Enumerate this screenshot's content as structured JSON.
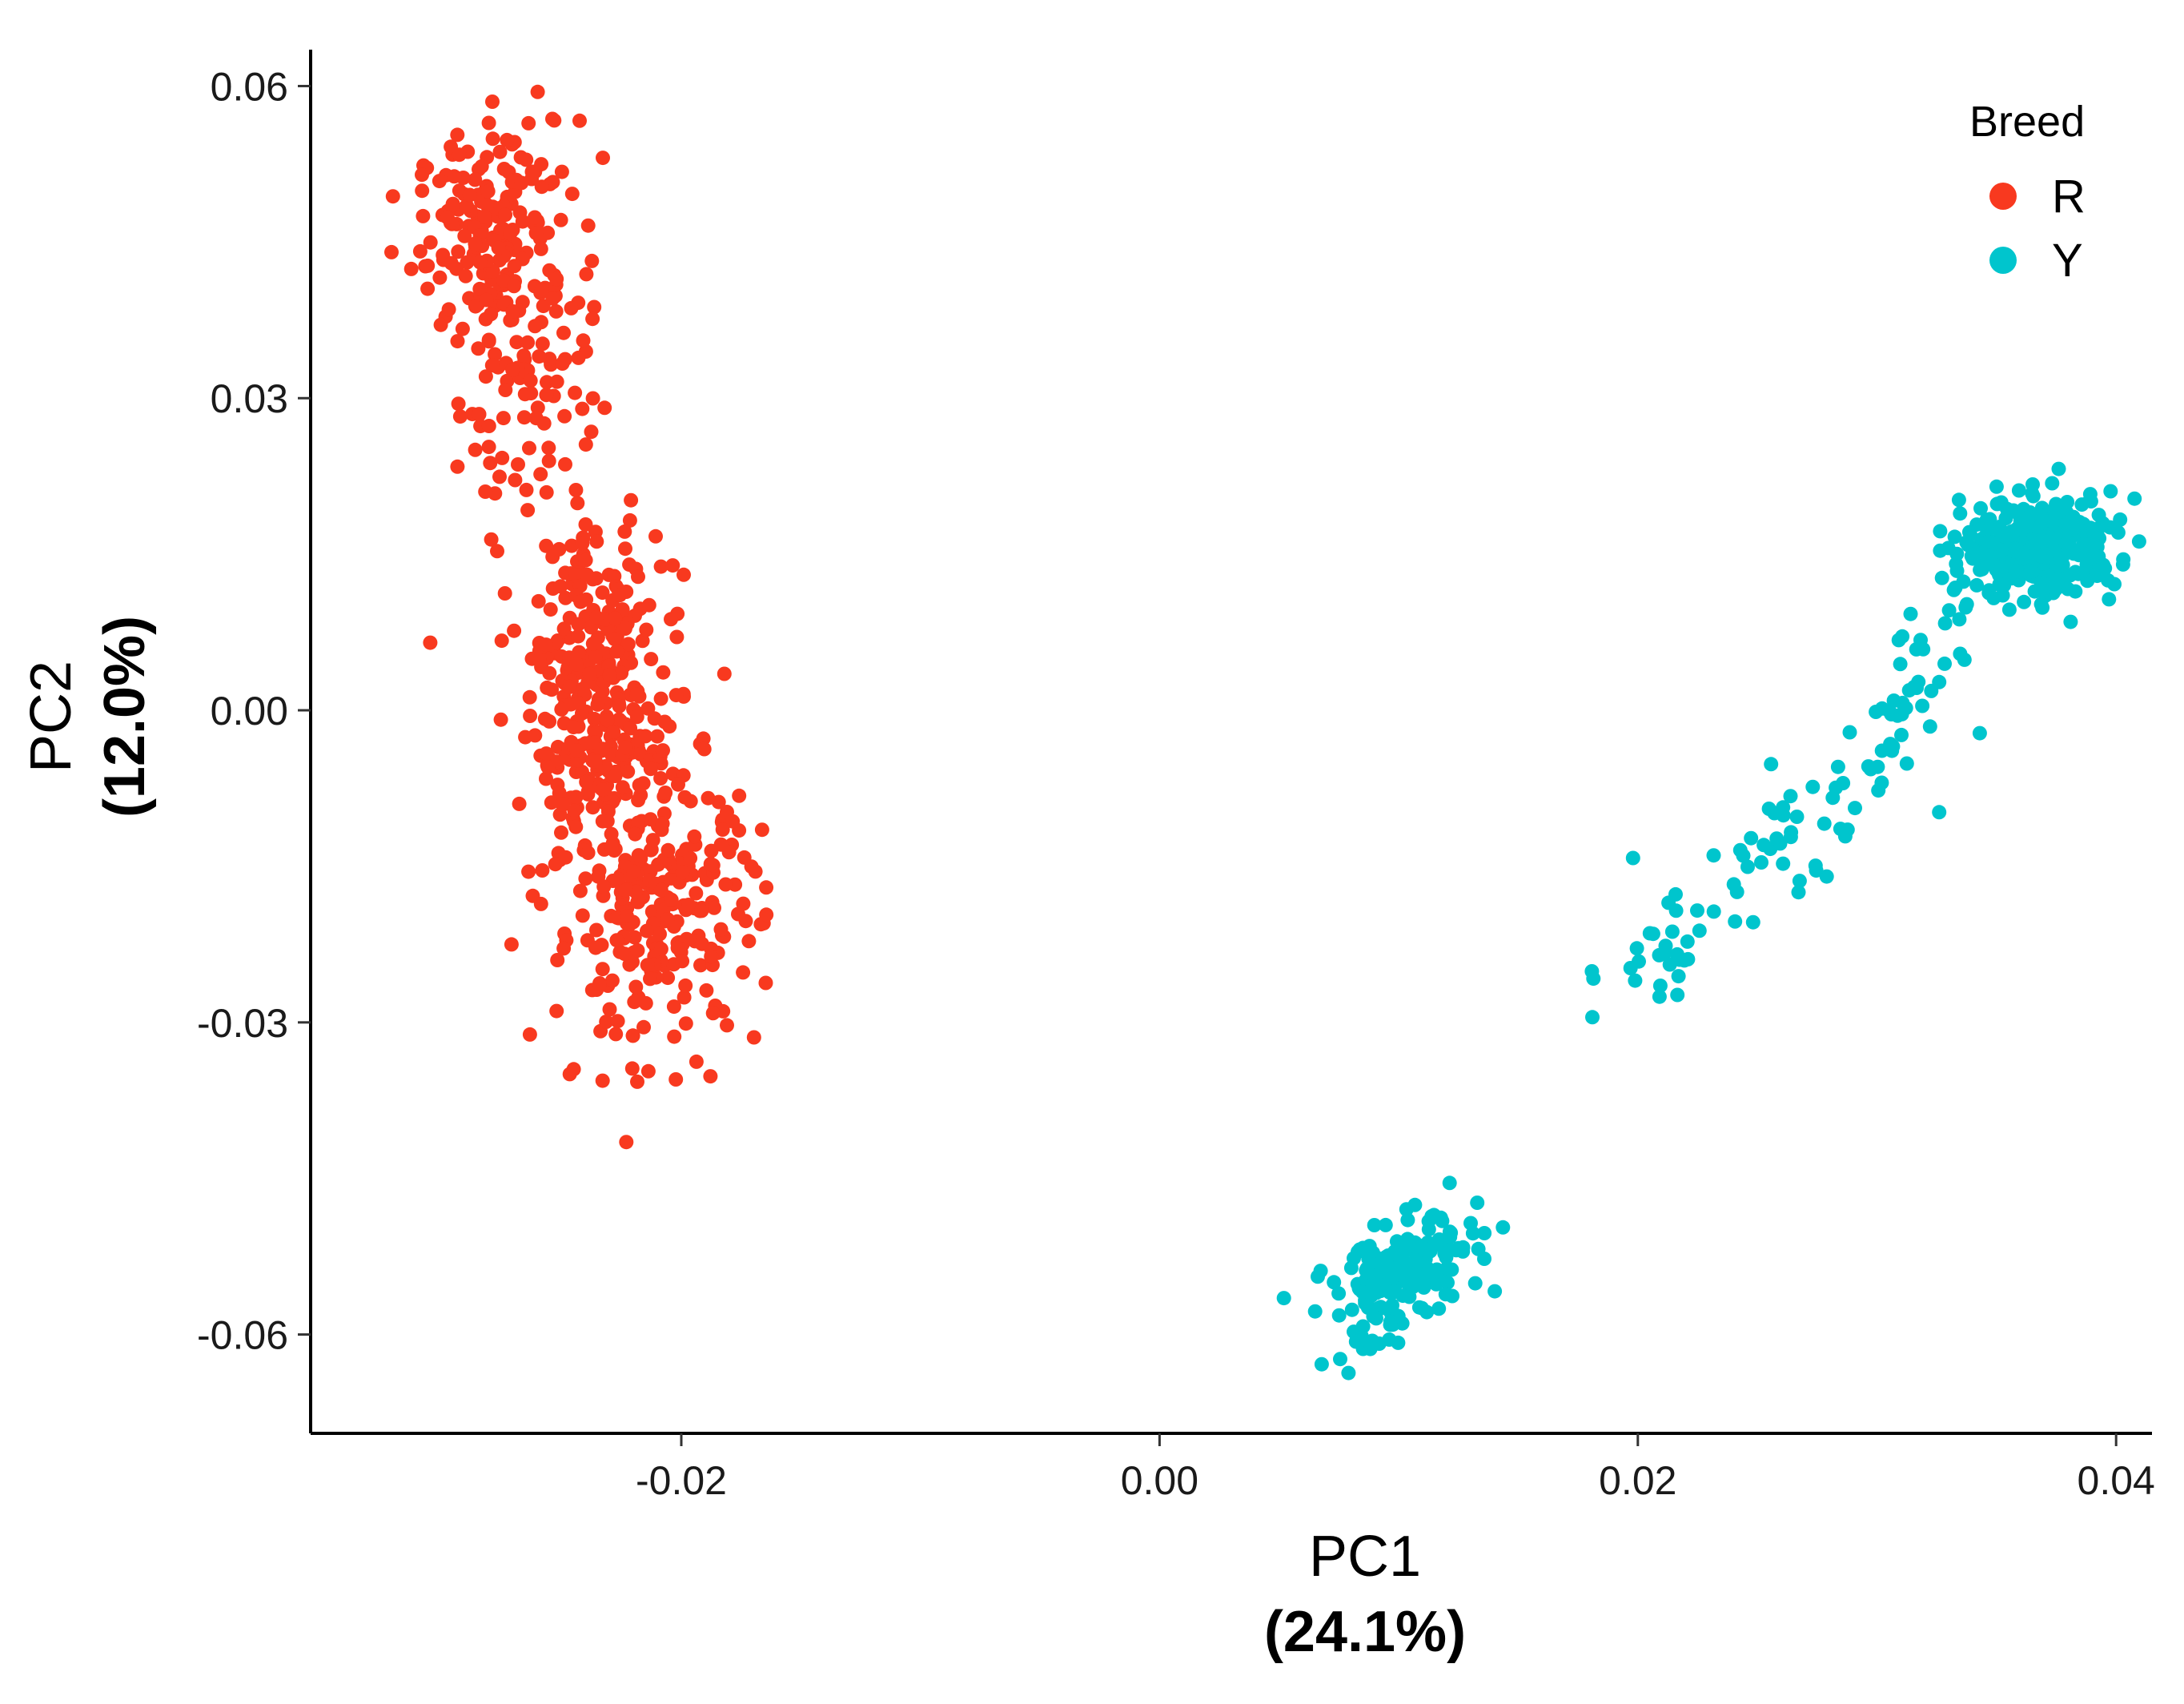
{
  "chart_data": {
    "type": "scatter",
    "title": "",
    "xlabel": "PC1",
    "xlabel_sub": "(24.1%)",
    "ylabel": "PC2",
    "ylabel_sub": "(12.0%)",
    "xlim": [
      -0.0355,
      0.0415
    ],
    "ylim": [
      -0.0695,
      0.0635
    ],
    "xticks": [
      -0.02,
      0.0,
      0.02,
      0.04
    ],
    "xtick_labels": [
      "-0.02",
      "0.00",
      "0.02",
      "0.04"
    ],
    "yticks": [
      0.06,
      0.03,
      0.0,
      -0.03,
      -0.06
    ],
    "ytick_labels": [
      "0.06",
      "0.03",
      "0.00",
      "-0.03",
      "-0.06"
    ],
    "grid": false,
    "legend": {
      "title": "Breed",
      "placement": "top-right"
    },
    "series": [
      {
        "name": "R",
        "color": "#F8391F",
        "clusters": [
          {
            "n": 190,
            "cx": -0.0277,
            "cy": 0.046,
            "sx": 0.0017,
            "sy": 0.005,
            "rho": 0.1
          },
          {
            "n": 85,
            "cx": -0.0265,
            "cy": 0.031,
            "sx": 0.0014,
            "sy": 0.006,
            "rho": 0.05
          },
          {
            "n": 180,
            "cx": -0.0238,
            "cy": 0.007,
            "sx": 0.0015,
            "sy": 0.0055,
            "rho": 0.05
          },
          {
            "n": 140,
            "cx": -0.0232,
            "cy": -0.004,
            "sx": 0.0016,
            "sy": 0.004,
            "rho": 0.0
          },
          {
            "n": 270,
            "cx": -0.0211,
            "cy": -0.0195,
            "sx": 0.0022,
            "sy": 0.0062,
            "rho": 0.05
          }
        ],
        "extra_points": [
          [
            -0.0305,
            0.0065
          ],
          [
            -0.0182,
            0.0035
          ],
          [
            -0.0223,
            -0.0415
          ],
          [
            -0.0245,
            -0.0345
          ],
          [
            -0.0169,
            -0.0155
          ],
          [
            -0.0271,
            -0.0225
          ],
          [
            -0.0308,
            0.0475
          ],
          [
            -0.0279,
            0.0585
          ]
        ]
      },
      {
        "name": "Y",
        "color": "#00C5CD",
        "clusters": [
          {
            "n": 330,
            "cx": 0.0368,
            "cy": 0.0158,
            "sx": 0.0016,
            "sy": 0.0023,
            "rho": 0.1
          },
          {
            "n": 45,
            "cx": 0.0315,
            "cy": 0.0015,
            "sx": 0.0013,
            "sy": 0.0045,
            "rho": 0.7
          },
          {
            "n": 45,
            "cx": 0.0262,
            "cy": -0.0125,
            "sx": 0.0022,
            "sy": 0.0055,
            "rho": 0.8
          },
          {
            "n": 25,
            "cx": 0.0212,
            "cy": -0.0235,
            "sx": 0.0012,
            "sy": 0.0025,
            "rho": 0.5
          },
          {
            "n": 195,
            "cx": 0.0102,
            "cy": -0.0545,
            "sx": 0.0016,
            "sy": 0.0032,
            "rho": 0.55
          }
        ],
        "extra_points": [
          [
            0.0181,
            -0.0295
          ],
          [
            0.0198,
            -0.0142
          ],
          [
            0.0343,
            -0.0022
          ],
          [
            0.0326,
            -0.0098
          ],
          [
            0.0403,
            0.0145
          ],
          [
            0.0381,
            0.0085
          ],
          [
            0.0376,
            0.0232
          ],
          [
            0.0052,
            -0.0565
          ],
          [
            0.0079,
            -0.0637
          ]
        ]
      }
    ]
  }
}
